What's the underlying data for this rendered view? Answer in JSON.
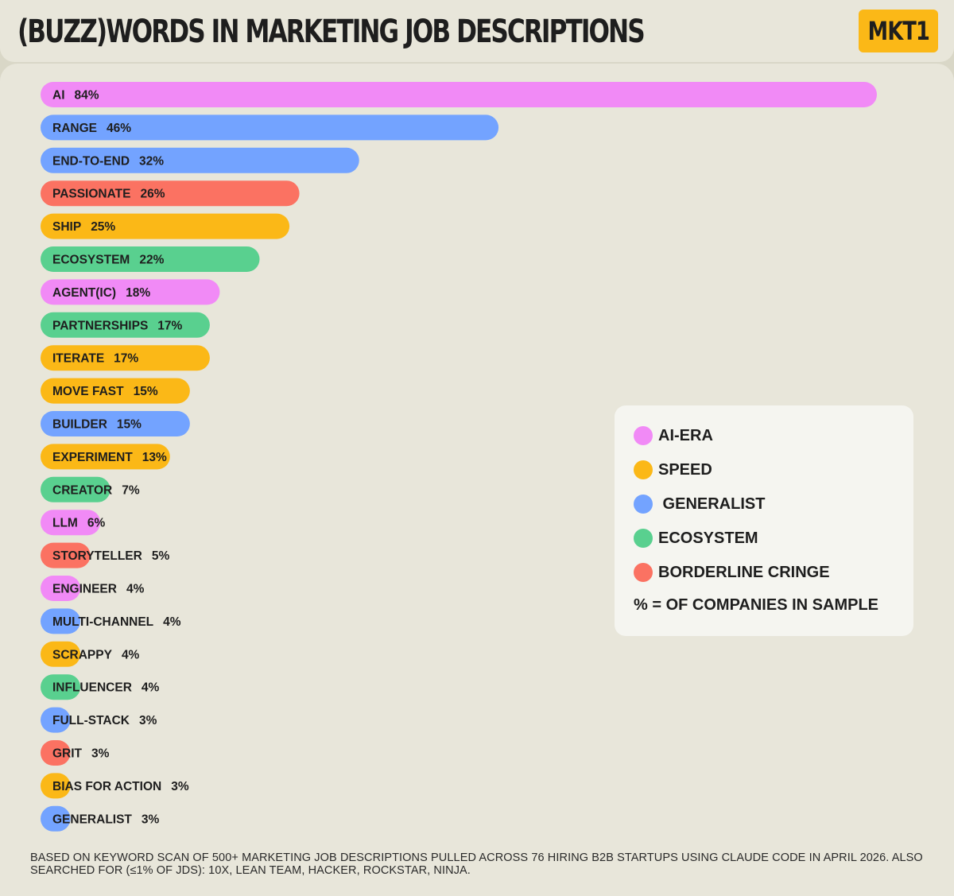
{
  "header": {
    "title": "(BUZZ)WORDS IN MARKETING JOB DESCRIPTIONS",
    "logo": "MKT1"
  },
  "legend": {
    "items": [
      {
        "label": "AI-ERA",
        "color": "#f18af6"
      },
      {
        "label": "SPEED",
        "color": "#fbb817"
      },
      {
        "label": " GENERALIST",
        "color": "#73a3ff"
      },
      {
        "label": "ECOSYSTEM",
        "color": "#59d08f"
      },
      {
        "label": "BORDERLINE CRINGE",
        "color": "#fb7262"
      }
    ],
    "note": "% = OF COMPANIES IN SAMPLE"
  },
  "footnote": "BASED ON KEYWORD SCAN OF 500+ MARKETING JOB DESCRIPTIONS PULLED ACROSS 76 HIRING B2B STARTUPS USING CLAUDE CODE IN APRIL 2026. ALSO SEARCHED FOR (≤1% OF JDS): 10X, LEAN TEAM, HACKER, ROCKSTAR, NINJA.",
  "chart_data": {
    "type": "bar",
    "orientation": "horizontal",
    "unit": "%",
    "grid": false,
    "legend_position": "right",
    "categories": [
      "AI",
      "RANGE",
      "END-TO-END",
      "PASSIONATE",
      "SHIP",
      "ECOSYSTEM",
      "AGENT(IC)",
      "PARTNERSHIPS",
      "ITERATE",
      "MOVE FAST",
      "BUILDER",
      "EXPERIMENT",
      "CREATOR",
      "LLM",
      "STORYTELLER",
      "ENGINEER",
      "MULTI-CHANNEL",
      "SCRAPPY",
      "INFLUENCER",
      "FULL-STACK",
      "GRIT",
      "BIAS FOR ACTION",
      "GENERALIST"
    ],
    "values": [
      84,
      46,
      32,
      26,
      25,
      22,
      18,
      17,
      17,
      15,
      15,
      13,
      7,
      6,
      5,
      4,
      4,
      4,
      4,
      3,
      3,
      3,
      3
    ],
    "groups": [
      "AI-ERA",
      "GENERALIST",
      "GENERALIST",
      "BORDERLINE CRINGE",
      "SPEED",
      "ECOSYSTEM",
      "AI-ERA",
      "ECOSYSTEM",
      "SPEED",
      "SPEED",
      "GENERALIST",
      "SPEED",
      "ECOSYSTEM",
      "AI-ERA",
      "BORDERLINE CRINGE",
      "AI-ERA",
      "GENERALIST",
      "SPEED",
      "ECOSYSTEM",
      "GENERALIST",
      "BORDERLINE CRINGE",
      "SPEED",
      "GENERALIST"
    ],
    "group_colors": {
      "AI-ERA": "#f18af6",
      "SPEED": "#fbb817",
      "GENERALIST": "#73a3ff",
      "ECOSYSTEM": "#59d08f",
      "BORDERLINE CRINGE": "#fb7262"
    },
    "xlim": [
      0,
      84
    ]
  }
}
